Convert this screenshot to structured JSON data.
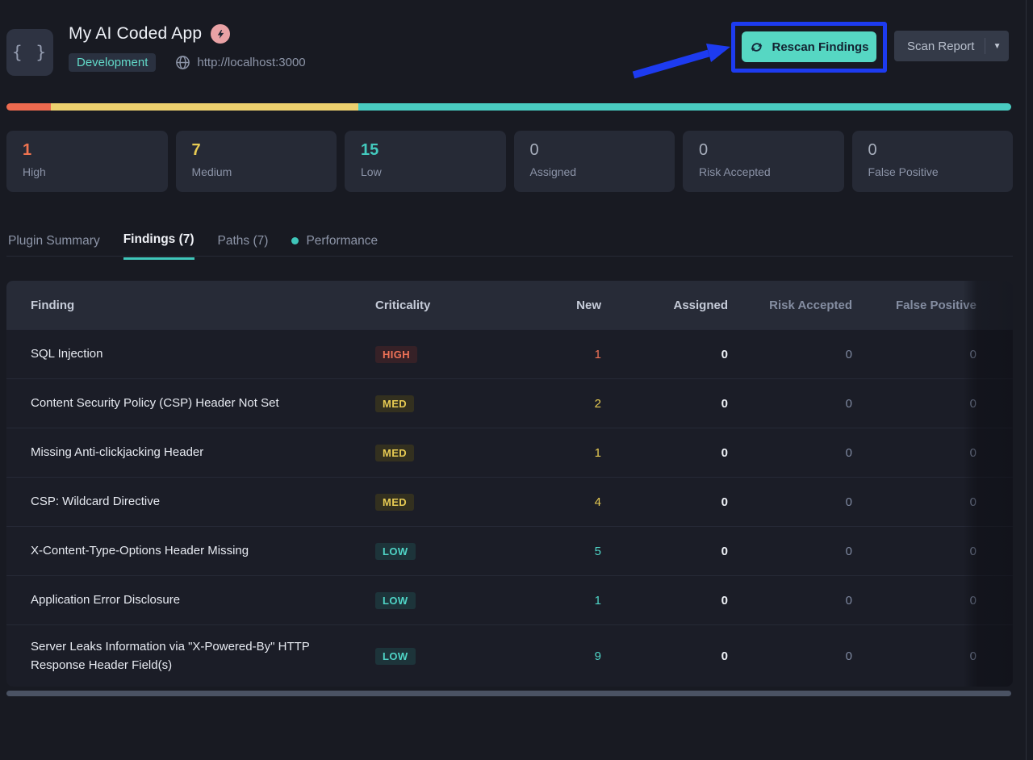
{
  "header": {
    "app_icon_glyph": "{ }",
    "title": "My AI Coded App",
    "environment": "Development",
    "target_url": "http://localhost:3000",
    "rescan_button_label": "Rescan Findings",
    "scan_report_label": "Scan Report"
  },
  "severity_bar": {
    "segments": [
      {
        "name": "high",
        "percent": 4.4,
        "color": "#ec6a4f"
      },
      {
        "name": "medium",
        "percent": 30.6,
        "color": "#ecd06e"
      },
      {
        "name": "low",
        "percent": 65.0,
        "color": "#49ccc1"
      }
    ]
  },
  "stat_cards": [
    {
      "value": "1",
      "label": "High",
      "color": "#ee7350"
    },
    {
      "value": "7",
      "label": "Medium",
      "color": "#e7cb53"
    },
    {
      "value": "15",
      "label": "Low",
      "color": "#43cabe"
    },
    {
      "value": "0",
      "label": "Assigned",
      "color": "#a7aebc"
    },
    {
      "value": "0",
      "label": "Risk Accepted",
      "color": "#a7aebc"
    },
    {
      "value": "0",
      "label": "False Positive",
      "color": "#a7aebc"
    }
  ],
  "tabs": [
    {
      "label": "Plugin Summary"
    },
    {
      "label": "Findings (7)"
    },
    {
      "label": "Paths (7)"
    },
    {
      "label": "Performance"
    }
  ],
  "table": {
    "columns": [
      "Finding",
      "Criticality",
      "New",
      "Assigned",
      "Risk Accepted",
      "False Positive"
    ],
    "rows": [
      {
        "finding": "SQL Injection",
        "severity": "HIGH",
        "new": "1",
        "assigned": "0",
        "risk_accepted": "0",
        "false_positive": "0"
      },
      {
        "finding": "Content Security Policy (CSP) Header Not Set",
        "severity": "MED",
        "new": "2",
        "assigned": "0",
        "risk_accepted": "0",
        "false_positive": "0"
      },
      {
        "finding": "Missing Anti-clickjacking Header",
        "severity": "MED",
        "new": "1",
        "assigned": "0",
        "risk_accepted": "0",
        "false_positive": "0"
      },
      {
        "finding": "CSP: Wildcard Directive",
        "severity": "MED",
        "new": "4",
        "assigned": "0",
        "risk_accepted": "0",
        "false_positive": "0"
      },
      {
        "finding": "X-Content-Type-Options Header Missing",
        "severity": "LOW",
        "new": "5",
        "assigned": "0",
        "risk_accepted": "0",
        "false_positive": "0"
      },
      {
        "finding": "Application Error Disclosure",
        "severity": "LOW",
        "new": "1",
        "assigned": "0",
        "risk_accepted": "0",
        "false_positive": "0"
      },
      {
        "finding": "Server Leaks Information via \"X-Powered-By\" HTTP Response Header Field(s)",
        "severity": "LOW",
        "new": "9",
        "assigned": "0",
        "risk_accepted": "0",
        "false_positive": "0"
      }
    ]
  },
  "colors": {
    "accent_teal": "#3fc6ba",
    "annotation_blue": "#1d3bf0",
    "rescan_button_bg": "#56d7c3",
    "severity_high": "#ee7350",
    "severity_medium": "#e7cb53",
    "severity_low": "#43cabe"
  }
}
